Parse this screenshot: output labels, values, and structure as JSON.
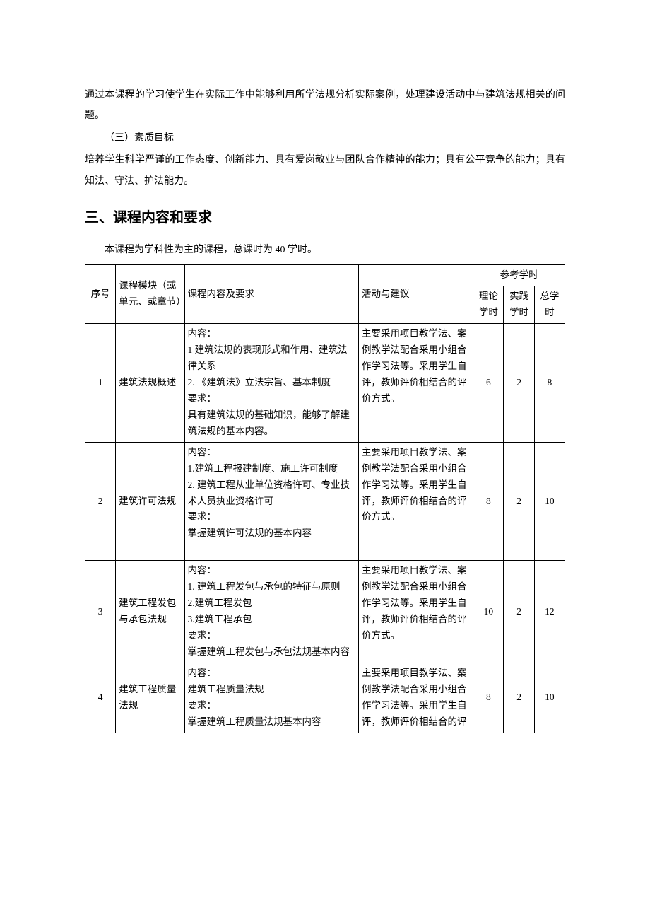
{
  "paragraphs": {
    "p1": "通过本课程的学习使学生在实际工作中能够利用所学法规分析实际案例，处理建设活动中与建筑法规相关的问题。",
    "p2": "（三）素质目标",
    "p3": "培养学生科学严谨的工作态度、创新能力、具有爱岗敬业与团队合作精神的能力；具有公平竞争的能力；具有知法、守法、护法能力。"
  },
  "heading": "三、课程内容和要求",
  "intro": "本课程为学科性为主的课程，总课时为 40 学时。",
  "table": {
    "head": {
      "seq": "序号",
      "module": "课程模块（或单元、或章节）",
      "content": "课程内容及要求",
      "activity": "活动与建议",
      "refHours": "参考学时",
      "theory": "理论学时",
      "practice": "实践学时",
      "total": "总学时"
    },
    "rows": [
      {
        "seq": "1",
        "module": "建筑法规概述",
        "content": "内容：\n1 建筑法规的表现形式和作用、建筑法律关系\n2. 《建筑法》立法宗旨、基本制度\n要求：\n具有建筑法规的基础知识，能够了解建筑法规的基本内容。",
        "activity": "主要采用项目教学法、案例教学法配合采用小组合作学习法等。采用学生自评，教师评价相结合的评价方式。",
        "theory": "6",
        "practice": "2",
        "total": "8"
      },
      {
        "seq": "2",
        "module": "建筑许可法规",
        "content": "内容：\n1.建筑工程报建制度、施工许可制度\n2. 建筑工程从业单位资格许可、专业技术人员执业资格许可\n要求：\n掌握建筑许可法规的基本内容\n\n",
        "activity": "主要采用项目教学法、案例教学法配合采用小组合作学习法等。采用学生自评，教师评价相结合的评价方式。",
        "theory": "8",
        "practice": "2",
        "total": "10"
      },
      {
        "seq": "3",
        "module": "建筑工程发包与承包法规",
        "content": "内容：\n1. 建筑工程发包与承包的特征与原则\n2.建筑工程发包\n3.建筑工程承包\n要求：\n掌握建筑工程发包与承包法规基本内容",
        "activity": "主要采用项目教学法、案例教学法配合采用小组合作学习法等。采用学生自评，教师评价相结合的评价方式。",
        "theory": "10",
        "practice": "2",
        "total": "12"
      },
      {
        "seq": "4",
        "module": "建筑工程质量法规",
        "content": "内容：\n建筑工程质量法规\n要求：\n掌握建筑工程质量法规基本内容",
        "activity": "主要采用项目教学法、案例教学法配合采用小组合作学习法等。采用学生自评，教师评价相结合的评",
        "theory": "8",
        "practice": "2",
        "total": "10"
      }
    ]
  }
}
